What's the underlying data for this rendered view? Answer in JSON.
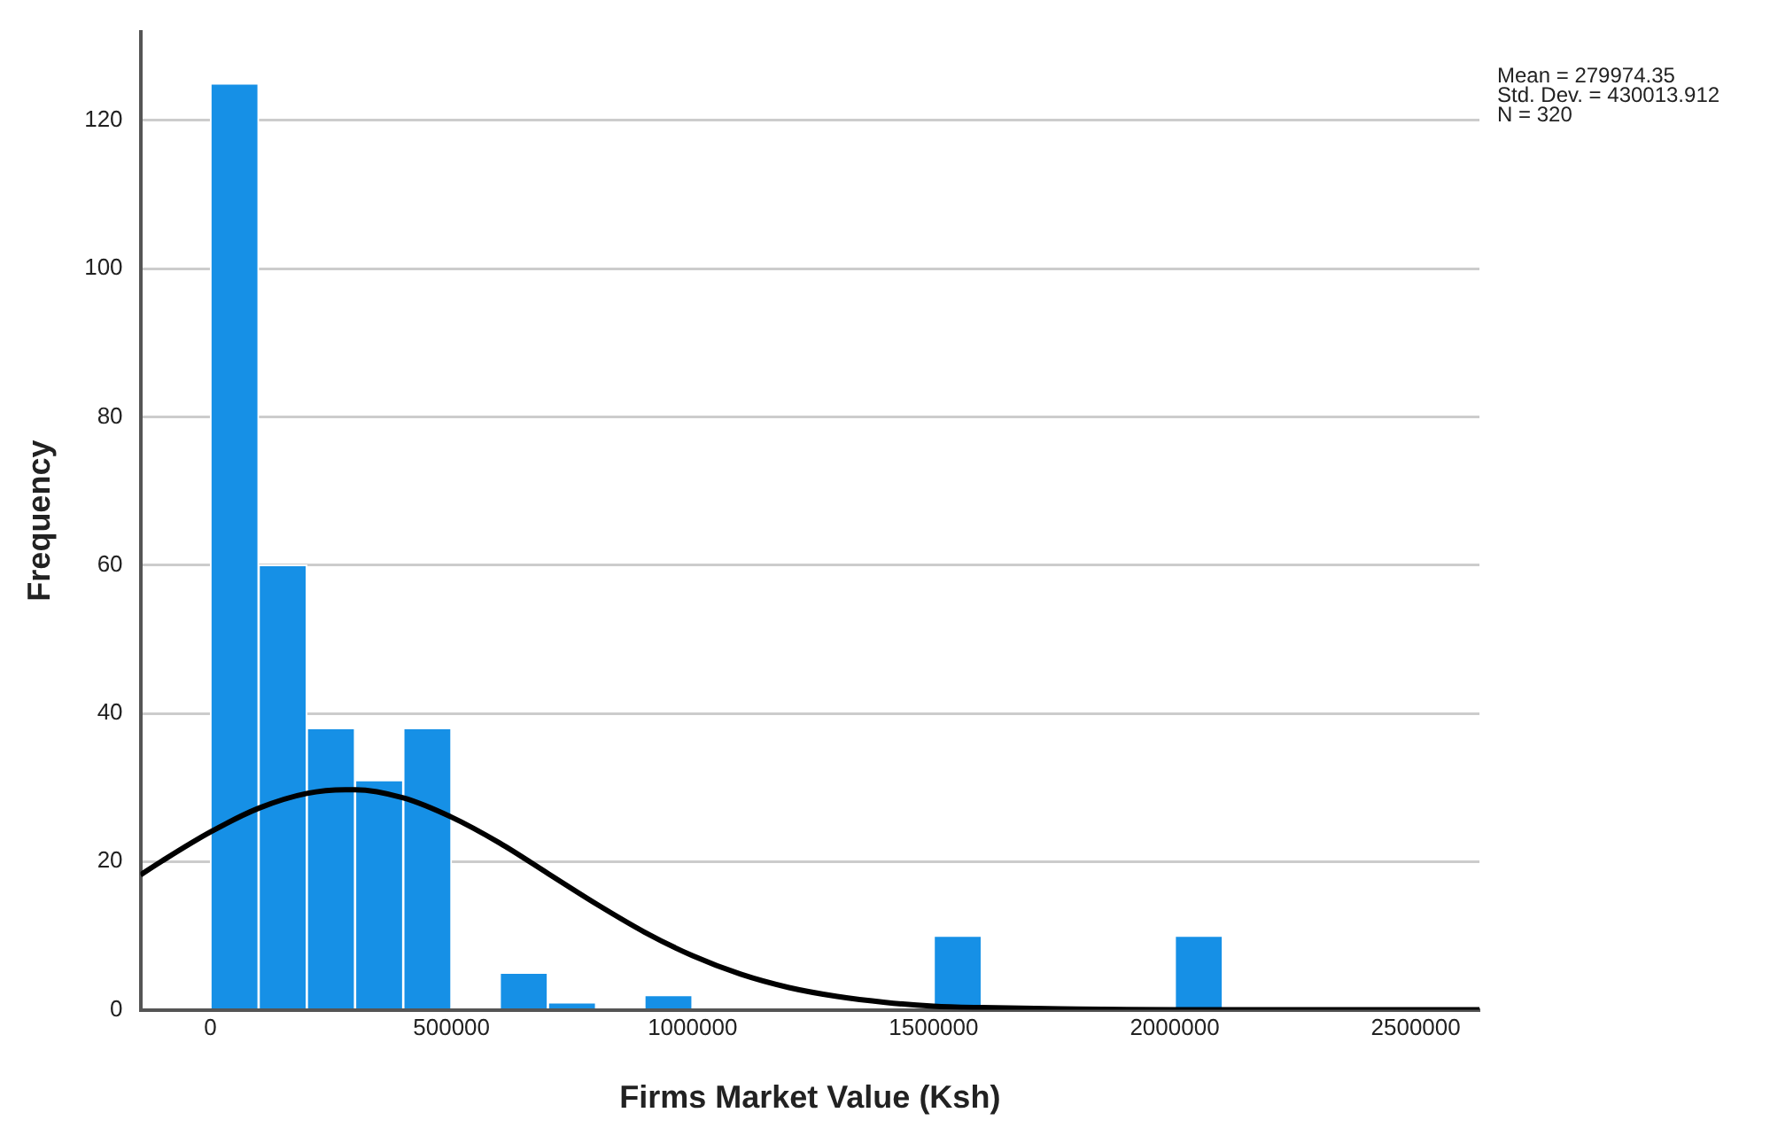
{
  "chart_data": {
    "type": "histogram",
    "xlabel": "Firms Market Value (Ksh)",
    "ylabel": "Frequency",
    "bins": [
      0,
      100000,
      200000,
      300000,
      400000,
      500000,
      600000,
      700000,
      800000,
      900000,
      1000000,
      1100000,
      1200000,
      1300000,
      1400000,
      1500000,
      1600000,
      1700000,
      1800000,
      1900000,
      2000000,
      2100000
    ],
    "values": [
      125,
      60,
      38,
      31,
      38,
      0,
      5,
      1,
      0,
      2,
      0,
      0,
      0,
      0,
      0,
      10,
      0,
      0,
      0,
      0,
      10
    ],
    "color": "#1690e6",
    "series": [
      {
        "type": "line",
        "color": "#000000",
        "x": [
          -145000,
          -100000,
          0,
          100000,
          200000,
          280000,
          300000,
          400000,
          500000,
          600000,
          700000,
          800000,
          900000,
          1000000,
          1100000,
          1200000,
          1300000,
          1400000,
          1500000,
          1600000,
          1800000,
          2000000,
          2632000
        ],
        "values": [
          18.2,
          20.1,
          24.0,
          27.2,
          29.2,
          29.7,
          29.7,
          28.6,
          26.0,
          22.5,
          18.4,
          14.3,
          10.5,
          7.3,
          4.8,
          3.0,
          1.8,
          1.0,
          0.5,
          0.3,
          0.1,
          0,
          0
        ]
      }
    ],
    "xlim": [
      -145000,
      2632000
    ],
    "xticks": [
      0,
      500000,
      1000000,
      1500000,
      2000000,
      2500000
    ],
    "ylim": [
      0,
      132
    ],
    "yticks": [
      0,
      20,
      40,
      60,
      80,
      100,
      120
    ],
    "grid": "y",
    "legend": false,
    "marker": "none",
    "line_style": "solid",
    "annotations": [
      "Mean = 279974.35",
      "Std. Dev. = 430013.912",
      "N = 320"
    ]
  }
}
